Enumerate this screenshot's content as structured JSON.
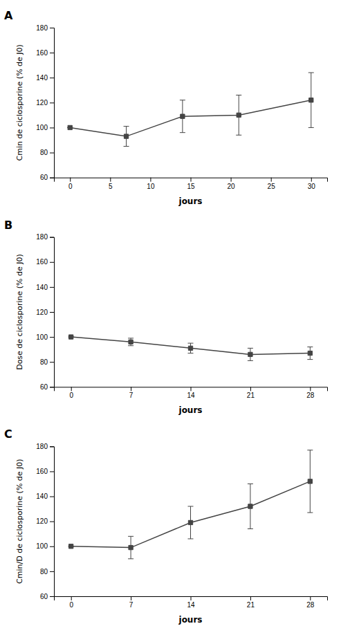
{
  "chart_data": [
    {
      "type": "line",
      "title": "A",
      "x": [
        0,
        7,
        14,
        21,
        30
      ],
      "values": [
        100,
        93,
        109,
        110,
        122
      ],
      "errors": [
        0,
        8,
        13,
        16,
        22
      ],
      "y_label": "Cmin de ciclosporine (% de J0)",
      "x_label": "jours",
      "xlim": [
        -2,
        32
      ],
      "xticks": [
        0,
        5,
        10,
        15,
        20,
        25,
        30
      ],
      "ylim": [
        60,
        180
      ],
      "yticks": [
        60,
        80,
        100,
        120,
        140,
        160,
        180
      ],
      "color": "#444444",
      "marker": "square",
      "grid": false
    },
    {
      "type": "line",
      "title": "B",
      "x": [
        0,
        7,
        14,
        21,
        28
      ],
      "values": [
        100,
        96,
        91,
        86,
        87
      ],
      "errors": [
        0,
        3,
        4,
        5,
        5
      ],
      "y_label": "Dose de ciclosporine (% de J0)",
      "x_label": "jours",
      "xlim": [
        -2,
        30
      ],
      "xticks": [
        0,
        7,
        14,
        21,
        28
      ],
      "ylim": [
        60,
        180
      ],
      "yticks": [
        60,
        80,
        100,
        120,
        140,
        160,
        180
      ],
      "color": "#444444",
      "marker": "square",
      "grid": false
    },
    {
      "type": "line",
      "title": "C",
      "x": [
        0,
        7,
        14,
        21,
        28
      ],
      "values": [
        100,
        99,
        119,
        132,
        152
      ],
      "errors": [
        0,
        9,
        13,
        18,
        25
      ],
      "y_label": "Cmin/D de ciclosporine (% de J0)",
      "x_label": "jours",
      "xlim": [
        -2,
        30
      ],
      "xticks": [
        0,
        7,
        14,
        21,
        28
      ],
      "ylim": [
        60,
        180
      ],
      "yticks": [
        60,
        80,
        100,
        120,
        140,
        160,
        180
      ],
      "color": "#444444",
      "marker": "square",
      "grid": false
    }
  ]
}
